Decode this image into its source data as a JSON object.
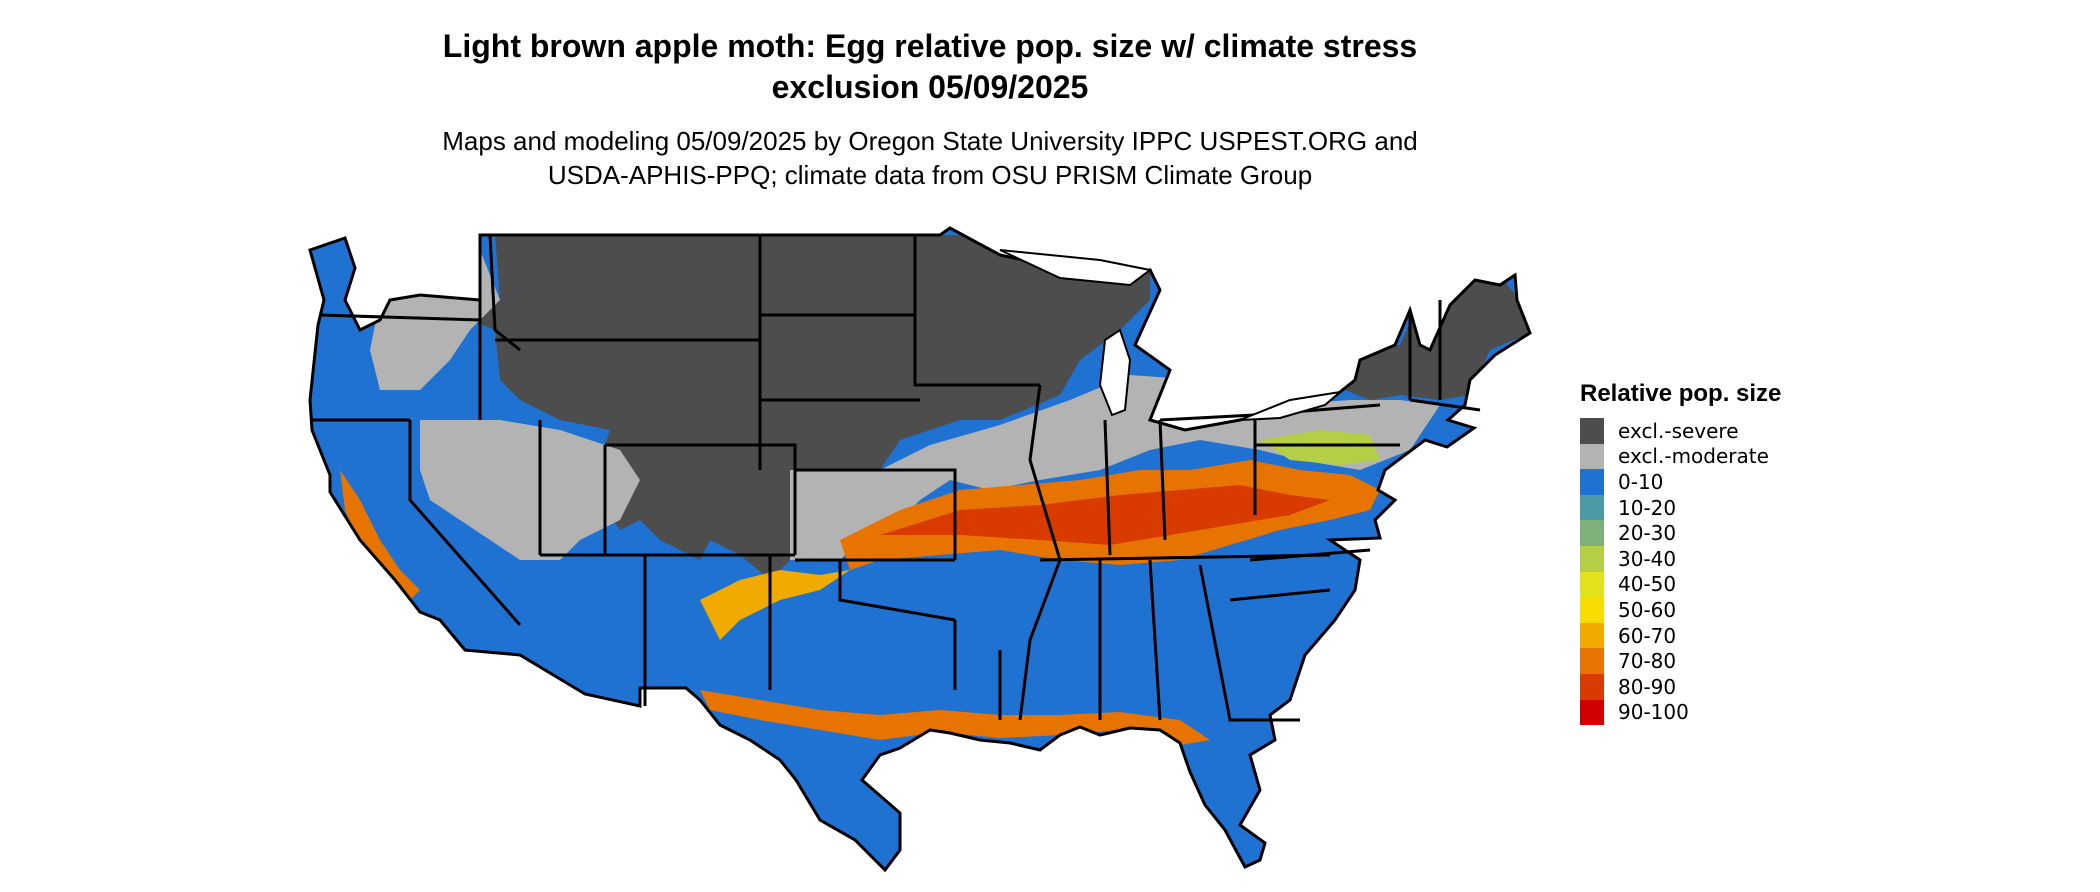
{
  "title_line1": "Light brown apple moth: Egg relative pop. size w/ climate stress",
  "title_line2": "exclusion 05/09/2025",
  "subtitle_line1": "Maps and modeling 05/09/2025 by Oregon State University IPPC USPEST.ORG and",
  "subtitle_line2": "USDA-APHIS-PPQ; climate data from OSU PRISM Climate Group",
  "legend": {
    "title": "Relative pop. size",
    "items": [
      {
        "label": "excl.-severe",
        "color": "#4d4d4d"
      },
      {
        "label": "excl.-moderate",
        "color": "#b3b3b3"
      },
      {
        "label": "0-10",
        "color": "#1f72d1"
      },
      {
        "label": "10-20",
        "color": "#4a9aa8"
      },
      {
        "label": "20-30",
        "color": "#7eb07a"
      },
      {
        "label": "30-40",
        "color": "#b4ce46"
      },
      {
        "label": "40-50",
        "color": "#e2e21c"
      },
      {
        "label": "50-60",
        "color": "#f7dc00"
      },
      {
        "label": "60-70",
        "color": "#f0aa00"
      },
      {
        "label": "70-80",
        "color": "#e87400"
      },
      {
        "label": "80-90",
        "color": "#d83a00"
      },
      {
        "label": "90-100",
        "color": "#d00000"
      }
    ]
  }
}
